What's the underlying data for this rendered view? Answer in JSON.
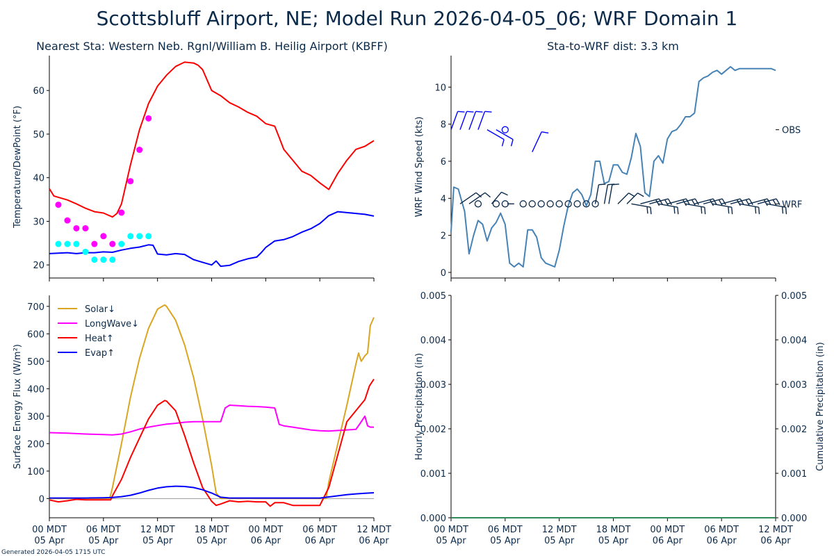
{
  "title": "Scottsbluff Airport, NE; Model Run 2026-04-05_06; WRF Domain 1",
  "subtitle_left": "Nearest Sta: Western Neb. Rgnl/William B. Heilig Airport (KBFF)",
  "subtitle_right": "Sta-to-WRF dist: 3.3 km",
  "footer": "Generated 2026-04-05 1715 UTC",
  "colors": {
    "text": "#0b2a4a",
    "temp": "#ff0000",
    "dew": "#0000ff",
    "obs_temp": "#ff00ff",
    "obs_dew": "#00ffff",
    "wind": "#4682b4",
    "solar": "#daa520",
    "longwave": "#ff00ff",
    "heat": "#ff0000",
    "evap": "#0000ff"
  },
  "x_ticks": [
    {
      "x": 0,
      "l1": "00 MDT",
      "l2": "05 Apr"
    },
    {
      "x": 6,
      "l1": "06 MDT",
      "l2": "05 Apr"
    },
    {
      "x": 12,
      "l1": "12 MDT",
      "l2": "05 Apr"
    },
    {
      "x": 18,
      "l1": "18 MDT",
      "l2": "05 Apr"
    },
    {
      "x": 24,
      "l1": "00 MDT",
      "l2": "06 Apr"
    },
    {
      "x": 30,
      "l1": "06 MDT",
      "l2": "06 Apr"
    },
    {
      "x": 36,
      "l1": "12 MDT",
      "l2": "06 Apr"
    }
  ],
  "chart_data": [
    {
      "type": "line",
      "ylabel": "Temperature/DewPoint (°F)",
      "xlim": [
        0,
        36
      ],
      "ylim": [
        17,
        68
      ],
      "yticks": [
        20,
        30,
        40,
        50,
        60
      ],
      "series": [
        {
          "key": "temp",
          "x": [
            0,
            0.5,
            1,
            2,
            3,
            4,
            5,
            6,
            7,
            7.5,
            8,
            9,
            10,
            11,
            12,
            13,
            14,
            15,
            16,
            16.5,
            17,
            18,
            19,
            20,
            21,
            22,
            23,
            24,
            25,
            25.5,
            26,
            27,
            28,
            29,
            30,
            31,
            32,
            33,
            34,
            35,
            36
          ],
          "y": [
            37.5,
            35.8,
            35.5,
            34.9,
            34.0,
            33.0,
            32.2,
            31.9,
            31.0,
            31.8,
            34,
            43,
            51,
            57,
            61,
            63.5,
            65.5,
            66.5,
            66.3,
            65.8,
            64.8,
            60,
            58.8,
            57.2,
            56.2,
            55.0,
            54.1,
            52.4,
            51.8,
            49.2,
            46.5,
            44.0,
            41.5,
            40.5,
            38.8,
            37.3,
            41,
            44,
            46.5,
            47.2,
            48.5
          ]
        },
        {
          "key": "dew",
          "x": [
            0,
            1,
            2,
            3,
            4,
            5,
            6,
            7,
            8,
            9,
            10,
            11,
            11.5,
            12,
            13,
            14,
            15,
            16,
            17,
            18,
            18.5,
            19,
            20,
            21,
            22,
            23,
            23.5,
            24,
            25,
            26,
            27,
            28,
            29,
            30,
            31,
            32,
            33,
            34,
            35,
            36
          ],
          "y": [
            22.6,
            22.7,
            22.8,
            22.6,
            22.8,
            22.8,
            23.0,
            22.9,
            23.4,
            23.8,
            24.1,
            24.6,
            24.5,
            22.5,
            22.3,
            22.6,
            22.4,
            21.2,
            20.6,
            20.0,
            20.9,
            19.7,
            19.9,
            20.8,
            21.4,
            21.8,
            22.8,
            24,
            25.5,
            25.8,
            26.5,
            27.5,
            28.3,
            29.5,
            31.3,
            32.2,
            32.0,
            31.8,
            31.6,
            31.2
          ]
        }
      ],
      "obs_temp": {
        "x": [
          1,
          2,
          3,
          4,
          5,
          6,
          7,
          8,
          9,
          10,
          11
        ],
        "y": [
          33.8,
          30.2,
          28.4,
          28.4,
          24.8,
          26.6,
          24.8,
          32.0,
          39.2,
          46.4,
          53.6
        ]
      },
      "obs_dew": {
        "x": [
          1,
          2,
          3,
          4,
          5,
          6,
          7,
          8,
          9,
          10,
          11
        ],
        "y": [
          24.8,
          24.8,
          24.8,
          23.0,
          21.2,
          21.2,
          21.2,
          24.8,
          26.6,
          26.6,
          26.6
        ]
      }
    },
    {
      "type": "line",
      "ylabel": "WRF Wind Speed (kts)",
      "xlim": [
        0,
        36
      ],
      "ylim": [
        -0.3,
        11.7
      ],
      "yticks": [
        0,
        2,
        4,
        6,
        8,
        10
      ],
      "right_labels": [
        {
          "label": "OBS",
          "y": 7.7
        },
        {
          "label": "WRF",
          "y": 3.7
        }
      ],
      "series": [
        {
          "key": "wind",
          "x": [
            0,
            0.3,
            0.8,
            1.5,
            2,
            2.5,
            3,
            3.5,
            4,
            4.5,
            5,
            5.5,
            6,
            6.5,
            7,
            7.5,
            8,
            8.5,
            9,
            9.5,
            10,
            10.5,
            11,
            11.5,
            12,
            12.5,
            13,
            13.5,
            14,
            14.5,
            15,
            15.5,
            16,
            16.5,
            17,
            17.5,
            18,
            18.5,
            19,
            19.5,
            20,
            20.5,
            21,
            21.5,
            22,
            22.5,
            23,
            23.5,
            24,
            24.5,
            25,
            25.5,
            26,
            26.5,
            27,
            27.5,
            28,
            28.5,
            29,
            29.5,
            30,
            30.5,
            31,
            31.5,
            32,
            32.5,
            33,
            33.5,
            34,
            34.5,
            35,
            35.5,
            36
          ],
          "y": [
            2.2,
            4.6,
            4.5,
            3.3,
            1.0,
            2.0,
            2.8,
            2.6,
            1.7,
            2.4,
            2.7,
            3.2,
            2.6,
            0.5,
            0.3,
            0.5,
            0.3,
            2.3,
            2.3,
            1.9,
            0.8,
            0.5,
            0.4,
            0.3,
            1.2,
            2.5,
            3.6,
            4.3,
            4.5,
            4.2,
            3.6,
            4.2,
            6.0,
            6.0,
            4.8,
            4.9,
            5.8,
            5.8,
            5.4,
            5.3,
            6.2,
            7.5,
            6.8,
            4.3,
            4.1,
            6.0,
            6.3,
            5.9,
            7.2,
            7.6,
            7.7,
            8.0,
            8.4,
            8.4,
            8.6,
            10.3,
            10.5,
            10.6,
            10.8,
            10.9,
            10.7,
            10.9,
            11.1,
            10.9,
            11.0,
            11.0,
            11.0,
            11.0,
            11.0,
            11.0,
            11.0,
            11.0,
            10.9
          ]
        },
        {
          "key": "calm_markers",
          "x": [
            3,
            5,
            6,
            8,
            9,
            10,
            11,
            12,
            13,
            14,
            15,
            16
          ],
          "y": [
            3.7,
            3.7,
            3.7,
            3.7,
            3.7,
            3.7,
            3.7,
            3.7,
            3.7,
            3.7,
            3.7,
            3.7
          ]
        }
      ]
    },
    {
      "type": "line",
      "ylabel": "Surface Energy Flux (W/m²)",
      "xlim": [
        0,
        36
      ],
      "ylim": [
        -70,
        740
      ],
      "yticks": [
        0,
        100,
        200,
        300,
        400,
        500,
        600,
        700
      ],
      "legend": "top-left",
      "series": [
        {
          "key": "solar",
          "name": "Solar↓",
          "x": [
            0,
            1,
            2,
            3,
            4,
            5,
            6,
            6.7,
            7,
            8,
            9,
            10,
            11,
            12,
            12.8,
            13,
            14,
            15,
            16,
            17,
            18,
            18.5,
            19,
            20,
            21,
            22,
            23,
            24,
            25,
            26,
            27,
            28,
            29,
            30,
            30.7,
            31,
            32,
            33,
            34,
            34.3,
            34.6,
            35,
            35.3,
            35.6,
            36
          ],
          "y": [
            0,
            0,
            0,
            0,
            0,
            0,
            0,
            0,
            40,
            200,
            370,
            510,
            620,
            690,
            705,
            700,
            650,
            560,
            440,
            290,
            120,
            20,
            0,
            0,
            0,
            0,
            0,
            0,
            0,
            0,
            0,
            0,
            0,
            0,
            0,
            60,
            200,
            340,
            490,
            530,
            500,
            520,
            530,
            630,
            660
          ]
        },
        {
          "key": "longwave",
          "name": "LongWave↓",
          "x": [
            0,
            2,
            4,
            6,
            7,
            8,
            9,
            10,
            11,
            12,
            13,
            14,
            15,
            16,
            17,
            18,
            19,
            19.5,
            20,
            21,
            22,
            23,
            24,
            25,
            25.5,
            26,
            27,
            28,
            29,
            30,
            31,
            32,
            33,
            34,
            34.5,
            35,
            35.3,
            35.6,
            36
          ],
          "y": [
            240,
            238,
            235,
            233,
            232,
            235,
            243,
            253,
            260,
            266,
            271,
            274,
            278,
            280,
            280,
            280,
            280,
            330,
            340,
            338,
            336,
            335,
            333,
            330,
            270,
            265,
            260,
            255,
            250,
            247,
            246,
            248,
            250,
            252,
            275,
            300,
            265,
            260,
            260
          ]
        },
        {
          "key": "heat",
          "name": "Heat↑",
          "x": [
            0,
            1,
            2,
            3,
            4,
            5,
            6,
            6.8,
            7,
            8,
            9,
            10,
            11,
            12,
            12.8,
            13,
            14,
            15,
            16,
            17,
            18,
            18.5,
            19,
            20,
            21,
            22,
            23,
            24,
            24.5,
            25,
            26,
            27,
            28,
            29,
            30,
            31,
            32,
            33,
            34,
            34.5,
            35,
            35.5,
            36
          ],
          "y": [
            -5,
            -12,
            -8,
            -3,
            -5,
            -5,
            -5,
            -5,
            10,
            70,
            150,
            220,
            290,
            340,
            357,
            355,
            320,
            230,
            130,
            40,
            -10,
            -25,
            -20,
            -8,
            -12,
            -10,
            -12,
            -12,
            -28,
            -15,
            -15,
            -25,
            -25,
            -25,
            -25,
            40,
            160,
            280,
            320,
            340,
            360,
            410,
            435
          ]
        },
        {
          "key": "evap",
          "name": "Evap↑",
          "x": [
            0,
            2,
            4,
            6,
            7,
            8,
            9,
            10,
            11,
            12,
            13,
            14,
            15,
            16,
            17,
            18,
            19,
            20,
            22,
            24,
            26,
            28,
            30,
            31,
            32,
            33,
            34,
            35,
            36
          ],
          "y": [
            2,
            2,
            2,
            3,
            4,
            7,
            12,
            20,
            30,
            38,
            43,
            45,
            44,
            40,
            32,
            20,
            5,
            2,
            2,
            2,
            2,
            2,
            2,
            6,
            10,
            14,
            17,
            19,
            21
          ]
        }
      ]
    },
    {
      "type": "line",
      "ylabel": "Hourly Precipitation (in)",
      "ylabel_right": "Cumulative Precipitation (in)",
      "xlim": [
        0,
        36
      ],
      "ylim": [
        0,
        0.005
      ],
      "yticks": [
        0.0,
        0.001,
        0.002,
        0.003,
        0.004,
        0.005
      ],
      "series": [
        {
          "key": "precip",
          "x": [
            0,
            36
          ],
          "y": [
            0,
            0
          ]
        }
      ]
    }
  ]
}
